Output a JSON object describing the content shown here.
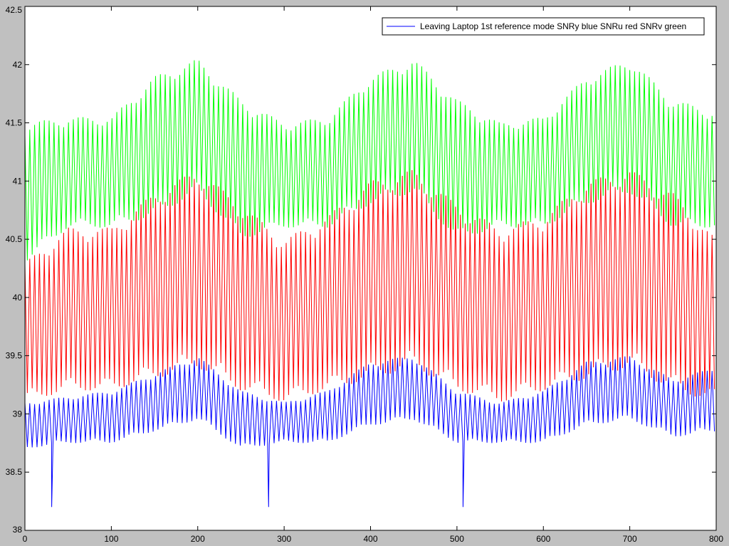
{
  "chart_data": {
    "type": "line",
    "title": "",
    "xlabel": "",
    "ylabel": "",
    "xlim": [
      0,
      800
    ],
    "ylim": [
      38,
      42.5
    ],
    "xticks": [
      0,
      100,
      200,
      300,
      400,
      500,
      600,
      700,
      800
    ],
    "yticks": [
      38,
      38.5,
      39,
      39.5,
      40,
      40.5,
      41,
      41.5,
      42,
      42.5
    ],
    "xtick_labels": [
      "0",
      "100",
      "200",
      "300",
      "400",
      "500",
      "600",
      "700",
      "800"
    ],
    "ytick_labels": [
      "38",
      "38.5",
      "39",
      "39.5",
      "40",
      "40.5",
      "41",
      "41.5",
      "42",
      "42.5"
    ],
    "grid": false,
    "legend": {
      "placement": "top-right",
      "entries": [
        "Leaving Laptop 1st reference mode SNRy blue SNRu red SNRv green"
      ]
    },
    "series_colors": {
      "SNRy": "#0000ff",
      "SNRu": "#ff0000",
      "SNRv": "#00ff00"
    },
    "series": [
      {
        "color": "#00ff00",
        "x": [
          0,
          50,
          100,
          150,
          200,
          250,
          300,
          350,
          400,
          450,
          500,
          550,
          600,
          650,
          700,
          750,
          800
        ],
        "high": [
          41.5,
          41.55,
          41.55,
          41.9,
          42.05,
          41.7,
          41.5,
          41.55,
          41.9,
          42.05,
          41.7,
          41.5,
          41.55,
          41.9,
          42.05,
          41.7,
          41.6
        ],
        "low": [
          40.3,
          40.6,
          40.6,
          40.7,
          40.9,
          40.5,
          40.6,
          40.6,
          40.8,
          40.9,
          40.5,
          40.6,
          40.6,
          40.8,
          40.9,
          40.6,
          40.6
        ]
      },
      {
        "color": "#ff0000",
        "x": [
          0,
          50,
          100,
          150,
          200,
          250,
          300,
          350,
          400,
          450,
          500,
          550,
          600,
          650,
          700,
          750,
          800
        ],
        "high": [
          40.3,
          40.6,
          40.6,
          40.9,
          41.1,
          40.8,
          40.5,
          40.7,
          41.0,
          41.1,
          40.8,
          40.6,
          40.7,
          41.0,
          41.1,
          40.9,
          40.5
        ],
        "low": [
          39.1,
          39.2,
          39.2,
          39.3,
          39.4,
          39.2,
          39.1,
          39.2,
          39.3,
          39.4,
          39.2,
          39.1,
          39.2,
          39.3,
          39.4,
          39.2,
          39.1
        ]
      },
      {
        "color": "#0000ff",
        "x": [
          0,
          50,
          100,
          150,
          200,
          250,
          300,
          350,
          400,
          450,
          500,
          550,
          600,
          650,
          700,
          750,
          800
        ],
        "high": [
          39.1,
          39.15,
          39.2,
          39.35,
          39.5,
          39.2,
          39.1,
          39.2,
          39.45,
          39.5,
          39.2,
          39.1,
          39.2,
          39.45,
          39.5,
          39.3,
          39.4
        ],
        "low": [
          38.7,
          38.75,
          38.75,
          38.85,
          38.95,
          38.7,
          38.75,
          38.75,
          38.9,
          38.95,
          38.75,
          38.75,
          38.75,
          38.9,
          38.95,
          38.8,
          38.85
        ],
        "dips": [
          [
            31,
            38.2
          ],
          [
            282,
            38.2
          ],
          [
            507,
            38.2
          ],
          [
            798,
            38.85
          ]
        ]
      }
    ]
  }
}
